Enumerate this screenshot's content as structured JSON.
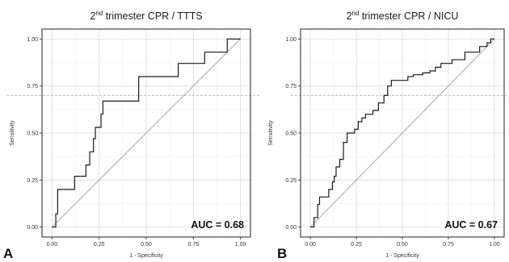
{
  "chart_data": [
    {
      "type": "line",
      "panel_label": "A",
      "title": {
        "pre": "2",
        "sup": "nd",
        "post": " trimester CPR / TTTS"
      },
      "xlabel": "1 - Specificity",
      "ylabel": "Sensitivity",
      "xlim": [
        0,
        1
      ],
      "ylim": [
        0,
        1
      ],
      "xticks": [
        "0.00",
        "0.25",
        "0.50",
        "0.75",
        "1.00"
      ],
      "yticks": [
        "0.00",
        "0.25",
        "0.50",
        "0.75",
        "1.00"
      ],
      "grid": true,
      "reference_line": {
        "x": [
          0,
          1
        ],
        "y": [
          0,
          1
        ]
      },
      "dashed_hline_y": 0.7,
      "annotation": "AUC = 0.68",
      "series": [
        {
          "x": [
            0,
            0.02,
            0.02,
            0.03,
            0.03,
            0.12,
            0.12,
            0.18,
            0.18,
            0.2,
            0.2,
            0.22,
            0.22,
            0.23,
            0.23,
            0.26,
            0.26,
            0.27,
            0.27,
            0.46,
            0.46,
            0.67,
            0.67,
            0.81,
            0.81,
            0.93,
            0.93,
            1.0
          ],
          "y": [
            0,
            0,
            0.07,
            0.07,
            0.2,
            0.2,
            0.27,
            0.27,
            0.33,
            0.33,
            0.4,
            0.4,
            0.47,
            0.47,
            0.53,
            0.53,
            0.6,
            0.6,
            0.67,
            0.67,
            0.8,
            0.8,
            0.87,
            0.87,
            0.93,
            0.93,
            1.0,
            1.0
          ]
        }
      ]
    },
    {
      "type": "line",
      "panel_label": "B",
      "title": {
        "pre": "2",
        "sup": "nd",
        "post": " trimester CPR / NICU"
      },
      "xlabel": "1 - Specificity",
      "ylabel": "Sensitivity",
      "xlim": [
        0,
        1
      ],
      "ylim": [
        0,
        1
      ],
      "xticks": [
        "0.00",
        "0.25",
        "0.50",
        "0.75",
        "1.00"
      ],
      "yticks": [
        "0.00",
        "0.25",
        "0.50",
        "0.75",
        "1.00"
      ],
      "grid": true,
      "reference_line": {
        "x": [
          0,
          1
        ],
        "y": [
          0,
          1
        ]
      },
      "dashed_hline_y": 0.7,
      "annotation": "AUC = 0.67",
      "series": [
        {
          "x": [
            0,
            0.02,
            0.02,
            0.04,
            0.04,
            0.05,
            0.05,
            0.1,
            0.1,
            0.12,
            0.12,
            0.13,
            0.13,
            0.14,
            0.14,
            0.16,
            0.16,
            0.18,
            0.18,
            0.2,
            0.2,
            0.24,
            0.24,
            0.26,
            0.26,
            0.28,
            0.28,
            0.3,
            0.3,
            0.34,
            0.34,
            0.37,
            0.37,
            0.4,
            0.4,
            0.42,
            0.42,
            0.44,
            0.44,
            0.53,
            0.53,
            0.56,
            0.56,
            0.61,
            0.61,
            0.65,
            0.65,
            0.68,
            0.68,
            0.71,
            0.71,
            0.77,
            0.77,
            0.84,
            0.84,
            0.92,
            0.92,
            0.96,
            0.96,
            0.98,
            0.98,
            1.0
          ],
          "y": [
            0,
            0,
            0.05,
            0.05,
            0.12,
            0.12,
            0.16,
            0.16,
            0.2,
            0.2,
            0.24,
            0.24,
            0.27,
            0.27,
            0.32,
            0.32,
            0.36,
            0.36,
            0.45,
            0.45,
            0.5,
            0.5,
            0.52,
            0.52,
            0.56,
            0.56,
            0.58,
            0.58,
            0.6,
            0.6,
            0.62,
            0.62,
            0.66,
            0.66,
            0.7,
            0.7,
            0.75,
            0.75,
            0.78,
            0.78,
            0.8,
            0.8,
            0.81,
            0.81,
            0.82,
            0.82,
            0.83,
            0.83,
            0.85,
            0.85,
            0.87,
            0.87,
            0.89,
            0.89,
            0.93,
            0.93,
            0.96,
            0.96,
            0.98,
            0.98,
            1.0,
            1.0
          ]
        }
      ]
    }
  ]
}
